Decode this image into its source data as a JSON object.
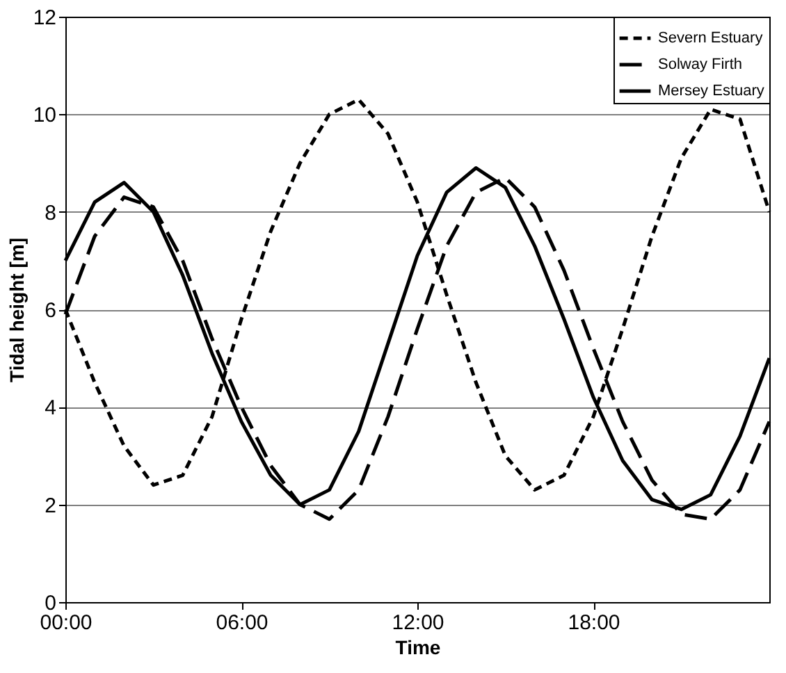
{
  "chart_data": {
    "type": "line",
    "xlabel": "Time",
    "ylabel": "Tidal height [m]",
    "x": [
      0,
      1,
      2,
      3,
      4,
      5,
      6,
      7,
      8,
      9,
      10,
      11,
      12,
      13,
      14,
      15,
      16,
      17,
      18,
      19,
      20,
      21,
      22,
      23,
      24
    ],
    "series": [
      {
        "name": "Severn Estuary",
        "color": "#000000",
        "line_style": "dotted",
        "values": [
          6.0,
          4.5,
          3.2,
          2.4,
          2.6,
          3.8,
          5.8,
          7.6,
          9.0,
          10.0,
          10.3,
          9.6,
          8.2,
          6.3,
          4.5,
          3.0,
          2.3,
          2.6,
          3.8,
          5.6,
          7.5,
          9.1,
          10.1,
          9.9,
          8.0
        ]
      },
      {
        "name": "Solway Firth",
        "color": "#000000",
        "line_style": "dashed",
        "values": [
          5.9,
          7.5,
          8.3,
          8.1,
          7.0,
          5.4,
          4.0,
          2.8,
          2.0,
          1.7,
          2.3,
          3.8,
          5.6,
          7.3,
          8.4,
          8.7,
          8.1,
          6.8,
          5.2,
          3.7,
          2.5,
          1.8,
          1.7,
          2.3,
          3.7
        ]
      },
      {
        "name": "Mersey Estuary",
        "color": "#000000",
        "line_style": "solid",
        "values": [
          7.0,
          8.2,
          8.6,
          8.0,
          6.7,
          5.1,
          3.7,
          2.6,
          2.0,
          2.3,
          3.5,
          5.3,
          7.1,
          8.4,
          8.9,
          8.5,
          7.3,
          5.8,
          4.2,
          2.9,
          2.1,
          1.9,
          2.2,
          3.4,
          5.0
        ]
      }
    ],
    "xlim": [
      0,
      24
    ],
    "xticks": [
      {
        "value": 0,
        "label": "00:00"
      },
      {
        "value": 6,
        "label": "06:00"
      },
      {
        "value": 12,
        "label": "12:00"
      },
      {
        "value": 18,
        "label": "18:00"
      }
    ],
    "ylim": [
      0,
      12
    ],
    "yticks": [
      0,
      2,
      4,
      6,
      8,
      10,
      12
    ],
    "grid": "y",
    "legend": "top right",
    "marker": "none"
  }
}
